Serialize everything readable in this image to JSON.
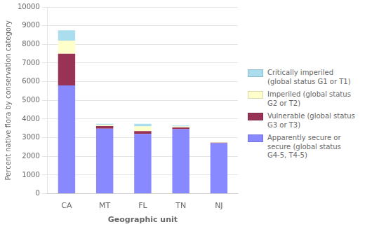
{
  "chart_data": {
    "type": "bar",
    "stacked": true,
    "categories": [
      "CA",
      "MT",
      "FL",
      "TN",
      "NJ"
    ],
    "series": [
      {
        "name": "Apparently secure or\nsecure (global status\nG4-5, T4-5)",
        "color": "#8888ff",
        "values": [
          5800,
          3480,
          3200,
          3450,
          2700
        ]
      },
      {
        "name": "Vulnerable (global status\nG3 or T3)",
        "color": "#993355",
        "values": [
          1700,
          140,
          150,
          100,
          30
        ]
      },
      {
        "name": "Imperiled (global status\nG2 or T2)",
        "color": "#ffffcc",
        "values": [
          700,
          60,
          250,
          50,
          20
        ]
      },
      {
        "name": "Critically imperiled\n(global status G1 or T1)",
        "color": "#aaddee",
        "values": [
          550,
          70,
          150,
          50,
          10
        ]
      }
    ],
    "xlabel": "Geographic unit",
    "ylabel": "Percent native flora by conservation category",
    "ylim": [
      0,
      10000
    ],
    "yticks": [
      0,
      1000,
      2000,
      3000,
      4000,
      5000,
      6000,
      7000,
      8000,
      9000,
      10000
    ],
    "grid": true,
    "legend": "right"
  }
}
